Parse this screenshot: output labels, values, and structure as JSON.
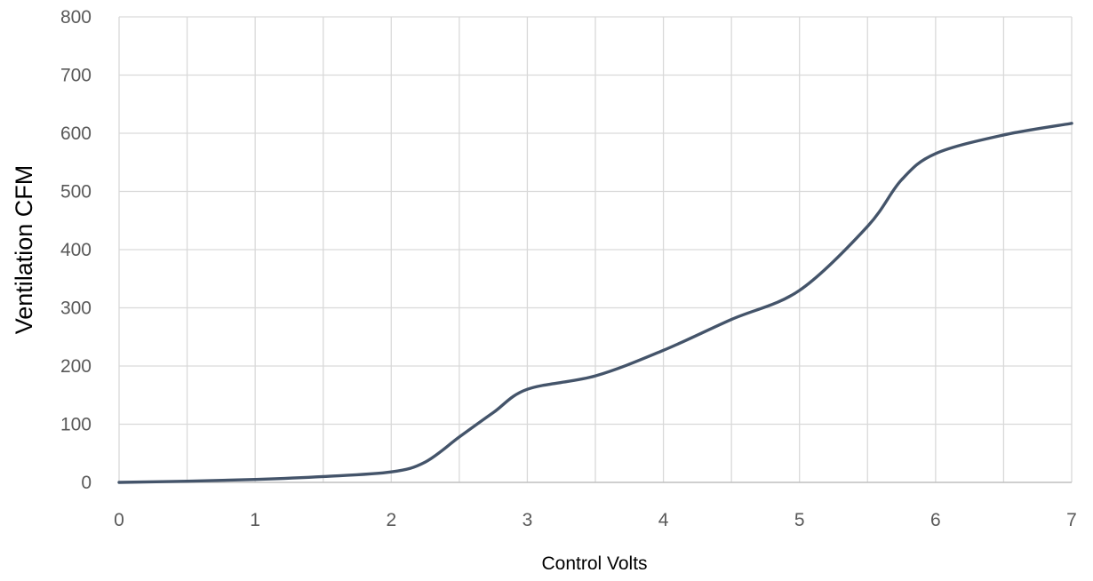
{
  "chart_data": {
    "type": "line",
    "title": "",
    "xlabel": "Control Volts",
    "ylabel": "Ventilation CFM",
    "xlim": [
      0,
      7
    ],
    "ylim": [
      0,
      800
    ],
    "x_ticks": [
      "0",
      "1",
      "2",
      "3",
      "4",
      "5",
      "6",
      "7"
    ],
    "y_ticks": [
      "0",
      "100",
      "200",
      "300",
      "400",
      "500",
      "600",
      "700",
      "800"
    ],
    "grid": true,
    "legend": "none",
    "series": [
      {
        "color": "#44546a",
        "x": [
          0,
          0.5,
          1,
          1.5,
          2,
          2.25,
          2.5,
          2.75,
          3,
          3.5,
          4,
          4.5,
          5,
          5.5,
          5.75,
          6,
          6.5,
          7
        ],
        "y": [
          0,
          2,
          5,
          10,
          18,
          35,
          78,
          120,
          160,
          183,
          227,
          280,
          330,
          440,
          520,
          565,
          597,
          617
        ]
      }
    ]
  }
}
